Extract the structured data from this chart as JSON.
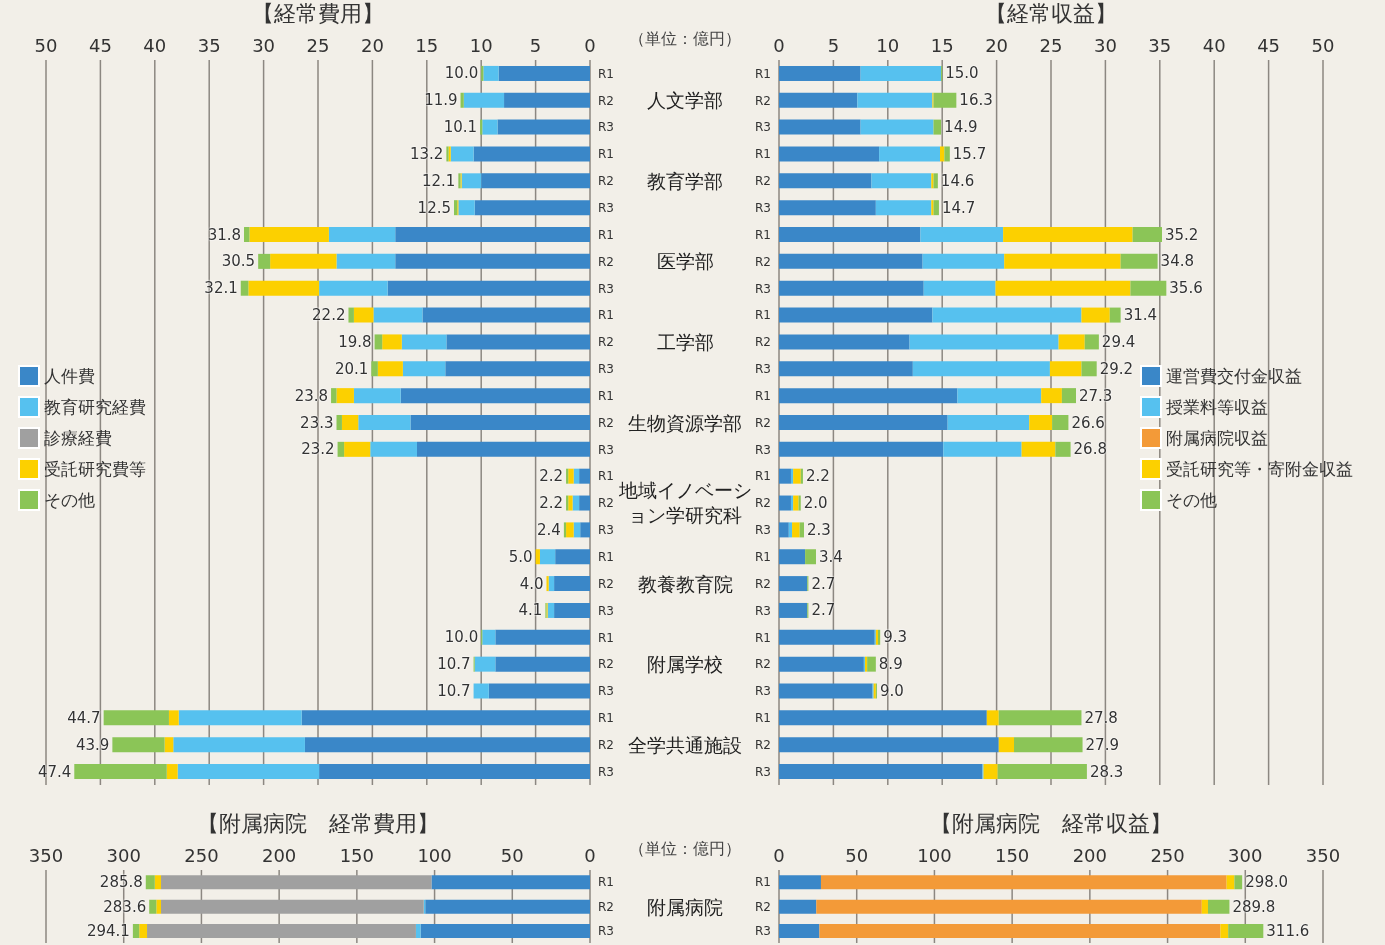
{
  "chart_data": [
    {
      "type": "bar",
      "title": "【経常費用】",
      "xlabel": "（単位：億円）",
      "orientation": "horizontal",
      "stacked": true,
      "grid": "x",
      "legend": "left",
      "xlim": [
        50,
        0
      ],
      "xticks": [
        0,
        5,
        10,
        15,
        20,
        25,
        30,
        35,
        40,
        45,
        50
      ],
      "categories": [
        "R1",
        "R2",
        "R3",
        "R1",
        "R2",
        "R3",
        "R1",
        "R2",
        "R3",
        "R1",
        "R2",
        "R3",
        "R1",
        "R2",
        "R3",
        "R1",
        "R2",
        "R3",
        "R1",
        "R2",
        "R3",
        "R1",
        "R2",
        "R3",
        "R1",
        "R2",
        "R3"
      ],
      "annotations": [
        "人文学部",
        "教育学部",
        "医学部",
        "工学部",
        "生物資源学部",
        "地域イノベーション学研究科",
        "教養教育院",
        "附属学校",
        "全学共通施設"
      ],
      "series": [
        {
          "name": "人件費",
          "color": "#3a87c8",
          "values": [
            8.4,
            7.9,
            8.5,
            10.7,
            10.0,
            10.6,
            17.9,
            17.9,
            18.6,
            15.4,
            13.2,
            13.3,
            17.4,
            16.5,
            15.9,
            1.0,
            1.0,
            0.9,
            3.2,
            3.3,
            3.3,
            8.7,
            8.7,
            9.3,
            26.5,
            26.2,
            24.9
          ]
        },
        {
          "name": "教育研究経費",
          "color": "#56c1ef",
          "values": [
            1.4,
            3.7,
            1.4,
            2.1,
            1.8,
            1.5,
            6.1,
            5.4,
            6.3,
            4.5,
            4.1,
            3.9,
            4.3,
            4.8,
            4.3,
            0.5,
            0.6,
            0.6,
            1.4,
            0.5,
            0.6,
            1.2,
            1.9,
            1.4,
            11.3,
            12.1,
            13.0
          ]
        },
        {
          "name": "診療経費",
          "color": "#a0a0a0",
          "values": [
            0,
            0,
            0,
            0,
            0,
            0,
            0,
            0,
            0,
            0,
            0,
            0,
            0,
            0,
            0,
            0,
            0,
            0,
            0,
            0,
            0,
            0,
            0,
            0,
            0,
            0,
            0
          ]
        },
        {
          "name": "受託研究費等",
          "color": "#fcd000",
          "values": [
            0,
            0,
            0,
            0.2,
            0.1,
            0.1,
            7.3,
            6.1,
            6.5,
            1.8,
            1.8,
            2.3,
            1.6,
            1.5,
            2.4,
            0.5,
            0.4,
            0.7,
            0.4,
            0.2,
            0.1,
            0,
            0,
            0,
            0.9,
            0.8,
            1.0
          ]
        },
        {
          "name": "その他",
          "color": "#8bc557",
          "values": [
            0.2,
            0.3,
            0.2,
            0.2,
            0.2,
            0.3,
            0.5,
            1.1,
            0.7,
            0.5,
            0.7,
            0.6,
            0.5,
            0.5,
            0.6,
            0.2,
            0.2,
            0.2,
            0,
            0,
            0.1,
            0.1,
            0.1,
            0,
            6.0,
            4.8,
            8.5
          ]
        }
      ],
      "totals": [
        "10.0",
        "11.9",
        "10.1",
        "13.2",
        "12.1",
        "12.5",
        "31.8",
        "30.5",
        "32.1",
        "22.2",
        "19.8",
        "20.1",
        "23.8",
        "23.3",
        "23.2",
        "2.2",
        "2.2",
        "2.4",
        "5.0",
        "4.0",
        "4.1",
        "10.0",
        "10.7",
        "10.7",
        "44.7",
        "43.9",
        "47.4"
      ]
    },
    {
      "type": "bar",
      "title": "【経常収益】",
      "orientation": "horizontal",
      "stacked": true,
      "grid": "x",
      "legend": "right",
      "xlim": [
        0,
        50
      ],
      "xticks": [
        0,
        5,
        10,
        15,
        20,
        25,
        30,
        35,
        40,
        45,
        50
      ],
      "categories": [
        "R1",
        "R2",
        "R3",
        "R1",
        "R2",
        "R3",
        "R1",
        "R2",
        "R3",
        "R1",
        "R2",
        "R3",
        "R1",
        "R2",
        "R3",
        "R1",
        "R2",
        "R3",
        "R1",
        "R2",
        "R3",
        "R1",
        "R2",
        "R3",
        "R1",
        "R2",
        "R3"
      ],
      "series": [
        {
          "name": "運営費交付金収益",
          "color": "#3a87c8",
          "values": [
            7.5,
            7.2,
            7.5,
            9.2,
            8.5,
            8.9,
            13.0,
            13.2,
            13.3,
            14.1,
            12.0,
            12.3,
            16.4,
            15.5,
            15.1,
            1.1,
            1.1,
            0.9,
            2.4,
            2.6,
            2.6,
            8.8,
            7.8,
            8.6,
            19.1,
            20.2,
            18.7
          ]
        },
        {
          "name": "授業料等収益",
          "color": "#56c1ef",
          "values": [
            7.4,
            6.9,
            6.7,
            5.6,
            5.5,
            5.1,
            7.6,
            7.5,
            6.6,
            13.7,
            13.7,
            12.6,
            7.7,
            7.5,
            7.2,
            0.2,
            0.2,
            0.3,
            0,
            0,
            0,
            0.1,
            0.1,
            0.1,
            0,
            0,
            0.1
          ]
        },
        {
          "name": "附属病院収益",
          "color": "#f39a38",
          "values": [
            0,
            0,
            0,
            0,
            0,
            0,
            0,
            0,
            0,
            0,
            0,
            0,
            0,
            0,
            0,
            0,
            0,
            0,
            0,
            0,
            0,
            0,
            0,
            0,
            0,
            0,
            0
          ]
        },
        {
          "name": "受託研究等・寄附金収益",
          "color": "#fcd000",
          "values": [
            0,
            0.1,
            0,
            0.4,
            0.2,
            0.2,
            11.9,
            10.7,
            12.4,
            2.6,
            2.4,
            2.9,
            1.9,
            2.1,
            3.1,
            0.7,
            0.5,
            0.7,
            0,
            0,
            0,
            0.2,
            0.2,
            0.2,
            1.1,
            1.4,
            1.3
          ]
        },
        {
          "name": "その他",
          "color": "#8bc557",
          "values": [
            0.1,
            2.1,
            0.7,
            0.5,
            0.4,
            0.5,
            2.7,
            3.4,
            3.3,
            1.0,
            1.3,
            1.4,
            1.3,
            1.5,
            1.4,
            0.2,
            0.2,
            0.4,
            1.0,
            0.1,
            0.1,
            0.2,
            0.8,
            0.1,
            7.6,
            6.3,
            8.2
          ]
        }
      ],
      "totals": [
        "15.0",
        "16.3",
        "14.9",
        "15.7",
        "14.6",
        "14.7",
        "35.2",
        "34.8",
        "35.6",
        "31.4",
        "29.4",
        "29.2",
        "27.3",
        "26.6",
        "26.8",
        "2.2",
        "2.0",
        "2.3",
        "3.4",
        "2.7",
        "2.7",
        "9.3",
        "8.9",
        "9.0",
        "27.8",
        "27.9",
        "28.3"
      ]
    },
    {
      "type": "bar",
      "title": "【附属病院　経常費用】",
      "xlabel": "（単位：億円）",
      "orientation": "horizontal",
      "stacked": true,
      "grid": "x",
      "xlim": [
        350,
        0
      ],
      "xticks": [
        0,
        50,
        100,
        150,
        200,
        250,
        300,
        350
      ],
      "categories": [
        "R1",
        "R2",
        "R3"
      ],
      "annotations": [
        "附属病院"
      ],
      "series": [
        {
          "color": "#3a87c8",
          "values": [
            102,
            106,
            109
          ]
        },
        {
          "color": "#56c1ef",
          "values": [
            0,
            1,
            3
          ]
        },
        {
          "color": "#a0a0a0",
          "values": [
            174,
            169,
            173
          ]
        },
        {
          "color": "#fcd000",
          "values": [
            4,
            3,
            5
          ]
        },
        {
          "color": "#8bc557",
          "values": [
            5.8,
            4.6,
            4.1
          ]
        }
      ],
      "totals": [
        "285.8",
        "283.6",
        "294.1"
      ]
    },
    {
      "type": "bar",
      "title": "【附属病院　経常収益】",
      "orientation": "horizontal",
      "stacked": true,
      "grid": "x",
      "xlim": [
        0,
        350
      ],
      "xticks": [
        0,
        50,
        100,
        150,
        200,
        250,
        300,
        350
      ],
      "categories": [
        "R1",
        "R2",
        "R3"
      ],
      "series": [
        {
          "color": "#3a87c8",
          "values": [
            27,
            24,
            26
          ]
        },
        {
          "color": "#f39a38",
          "values": [
            261,
            248,
            258
          ]
        },
        {
          "color": "#fcd000",
          "values": [
            5,
            4,
            5
          ]
        },
        {
          "color": "#8bc557",
          "values": [
            5,
            13.8,
            22.6
          ]
        }
      ],
      "totals": [
        "298.0",
        "289.8",
        "311.6"
      ]
    }
  ]
}
